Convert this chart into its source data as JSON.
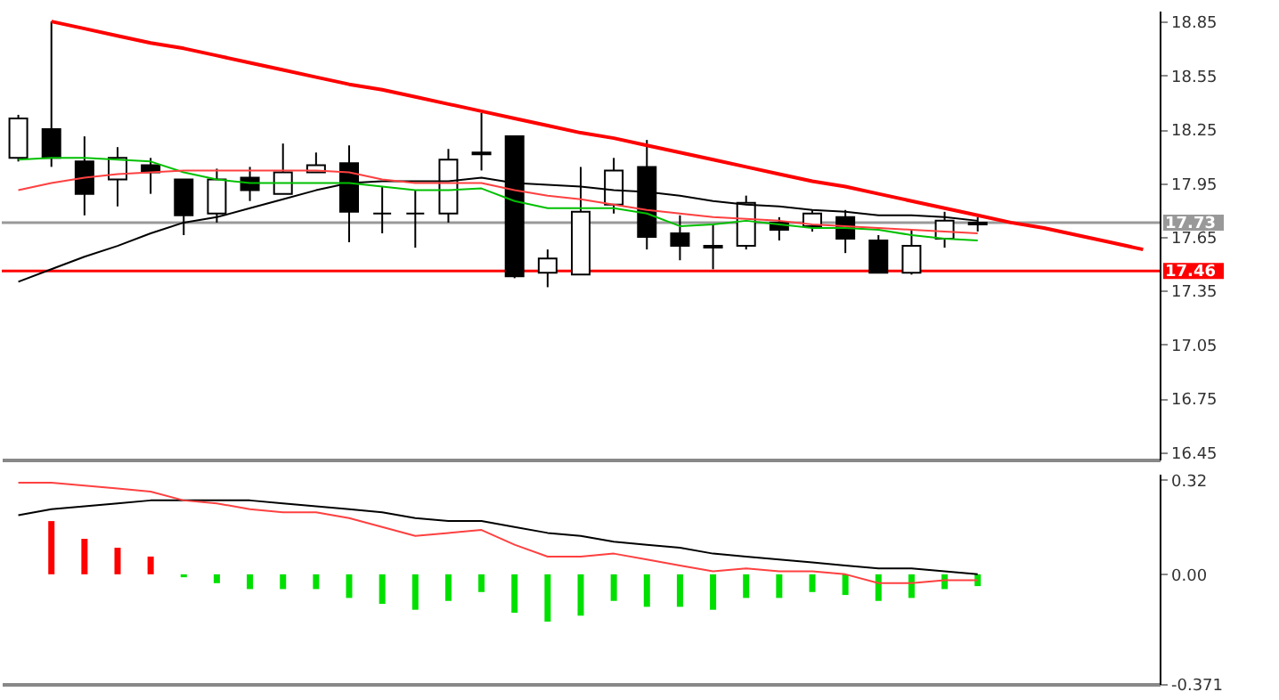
{
  "chart_data": [
    {
      "type": "candlestick",
      "categories": [
        null,
        null,
        null,
        null,
        null,
        null,
        null,
        null,
        null,
        null,
        null,
        null,
        null,
        null,
        null,
        null,
        null,
        null,
        null,
        null,
        null,
        null,
        null,
        null,
        null,
        null,
        null,
        null,
        null,
        null,
        null,
        null,
        null,
        null,
        null
      ],
      "ohlc": [
        [
          18.09,
          18.33,
          18.07,
          18.31
        ],
        [
          18.25,
          18.85,
          18.04,
          18.09
        ],
        [
          18.07,
          18.21,
          17.77,
          17.89
        ],
        [
          17.97,
          18.15,
          17.82,
          18.09
        ],
        [
          18.05,
          18.09,
          17.89,
          18.01
        ],
        [
          17.97,
          17.97,
          17.66,
          17.77
        ],
        [
          17.78,
          18.03,
          17.73,
          17.97
        ],
        [
          17.98,
          18.04,
          17.85,
          17.91
        ],
        [
          17.89,
          18.17,
          17.89,
          18.01
        ],
        [
          18.01,
          18.12,
          18.01,
          18.05
        ],
        [
          18.06,
          18.16,
          17.62,
          17.79
        ],
        [
          17.78,
          17.93,
          17.67,
          17.78
        ],
        [
          17.78,
          17.91,
          17.59,
          17.78
        ],
        [
          17.78,
          18.14,
          17.73,
          18.08
        ],
        [
          18.12,
          18.34,
          18.02,
          18.11
        ],
        [
          18.21,
          18.21,
          17.42,
          17.43
        ],
        [
          17.45,
          17.58,
          17.37,
          17.53
        ],
        [
          17.44,
          18.04,
          17.44,
          17.79
        ],
        [
          17.83,
          18.09,
          17.78,
          18.02
        ],
        [
          18.04,
          18.19,
          17.58,
          17.65
        ],
        [
          17.67,
          17.77,
          17.52,
          17.6
        ],
        [
          17.59,
          17.72,
          17.47,
          17.6
        ],
        [
          17.6,
          17.88,
          17.58,
          17.84
        ],
        [
          17.73,
          17.76,
          17.63,
          17.69
        ],
        [
          17.71,
          17.8,
          17.68,
          17.78
        ],
        [
          17.76,
          17.8,
          17.56,
          17.64
        ],
        [
          17.63,
          17.66,
          17.45,
          17.45
        ],
        [
          17.45,
          17.69,
          17.44,
          17.6
        ],
        [
          17.64,
          17.79,
          17.59,
          17.74
        ],
        [
          17.72,
          17.76,
          17.68,
          17.73
        ],
        null,
        null,
        null,
        null,
        null
      ],
      "series": [
        {
          "type": "line",
          "color": "#000000",
          "values": [
            17.4,
            17.47,
            17.54,
            17.6,
            17.67,
            17.73,
            17.76,
            17.81,
            17.86,
            17.91,
            17.95,
            17.96,
            17.96,
            17.96,
            17.98,
            17.95,
            17.94,
            17.93,
            17.91,
            17.9,
            17.88,
            17.85,
            17.83,
            17.82,
            17.8,
            17.79,
            17.77,
            17.77,
            17.76,
            17.74,
            null,
            null,
            null,
            null,
            null
          ]
        },
        {
          "type": "line",
          "color": "#00c000",
          "values": [
            18.08,
            18.09,
            18.09,
            18.08,
            18.07,
            18.01,
            17.97,
            17.95,
            17.95,
            17.95,
            17.95,
            17.93,
            17.91,
            17.91,
            17.92,
            17.85,
            17.81,
            17.81,
            17.81,
            17.78,
            17.71,
            17.72,
            17.74,
            17.72,
            17.7,
            17.7,
            17.69,
            17.66,
            17.64,
            17.63,
            null,
            null,
            null,
            null,
            null
          ]
        },
        {
          "type": "line",
          "color": "#ff4040",
          "values": [
            17.91,
            17.95,
            17.98,
            18.0,
            18.01,
            18.02,
            18.02,
            18.02,
            18.02,
            18.02,
            18.01,
            17.97,
            17.95,
            17.95,
            17.95,
            17.91,
            17.88,
            17.86,
            17.83,
            17.8,
            17.78,
            17.76,
            17.75,
            17.74,
            17.72,
            17.71,
            17.7,
            17.69,
            17.68,
            17.67,
            null,
            null,
            null,
            null,
            null
          ]
        },
        {
          "type": "line",
          "color": "#ff0000",
          "values": [
            null,
            18.85,
            18.81,
            18.77,
            18.73,
            18.7,
            18.66,
            18.62,
            18.58,
            18.54,
            18.5,
            18.47,
            18.43,
            18.39,
            18.35,
            18.31,
            18.27,
            18.23,
            18.2,
            18.16,
            18.12,
            18.08,
            18.04,
            18.0,
            17.96,
            17.93,
            17.89,
            17.85,
            17.81,
            17.77,
            17.73,
            17.7,
            17.66,
            17.62,
            17.58
          ]
        }
      ],
      "ref_lines": [
        {
          "axis": "y",
          "value": 17.73,
          "label": "17.73",
          "color": "#999999"
        },
        {
          "axis": "y",
          "value": 17.46,
          "label": "17.46",
          "color": "#ff0000"
        }
      ],
      "ylim": [
        16.41,
        18.91
      ],
      "yticks": [
        16.45,
        16.75,
        17.05,
        17.35,
        17.65,
        17.95,
        18.25,
        18.55,
        18.85
      ],
      "tick_labels": "y",
      "grid": false
    },
    {
      "type": "bar",
      "categories": [
        null,
        null,
        null,
        null,
        null,
        null,
        null,
        null,
        null,
        null,
        null,
        null,
        null,
        null,
        null,
        null,
        null,
        null,
        null,
        null,
        null,
        null,
        null,
        null,
        null,
        null,
        null,
        null,
        null,
        null,
        null,
        null,
        null,
        null,
        null
      ],
      "series": [
        {
          "type": "bar",
          "values": [
            null,
            0.18,
            0.12,
            0.09,
            0.06,
            -0.01,
            -0.03,
            -0.05,
            -0.05,
            -0.05,
            -0.08,
            -0.1,
            -0.12,
            -0.09,
            -0.06,
            -0.13,
            -0.16,
            -0.14,
            -0.09,
            -0.11,
            -0.11,
            -0.12,
            -0.08,
            -0.08,
            -0.06,
            -0.07,
            -0.09,
            -0.08,
            -0.05,
            -0.04,
            null,
            null,
            null,
            null,
            null
          ],
          "colors": [
            null,
            "#ff0000",
            "#ff0000",
            "#ff0000",
            "#ff0000",
            "#00e000",
            "#00e000",
            "#00e000",
            "#00e000",
            "#00e000",
            "#00e000",
            "#00e000",
            "#00e000",
            "#00e000",
            "#00e000",
            "#00e000",
            "#00e000",
            "#00e000",
            "#00e000",
            "#00e000",
            "#00e000",
            "#00e000",
            "#00e000",
            "#00e000",
            "#00e000",
            "#00e000",
            "#00e000",
            "#00e000",
            "#00e000",
            "#00e000",
            null,
            null,
            null,
            null,
            null
          ]
        },
        {
          "type": "line",
          "color": "#000000",
          "values": [
            0.2,
            0.22,
            0.23,
            0.24,
            0.25,
            0.25,
            0.25,
            0.25,
            0.24,
            0.23,
            0.22,
            0.21,
            0.19,
            0.18,
            0.18,
            0.16,
            0.14,
            0.13,
            0.11,
            0.1,
            0.09,
            0.07,
            0.06,
            0.05,
            0.04,
            0.03,
            0.02,
            0.02,
            0.01,
            0.0,
            null,
            null,
            null,
            null,
            null
          ]
        },
        {
          "type": "line",
          "color": "#ff4040",
          "values": [
            0.31,
            0.31,
            0.3,
            0.29,
            0.28,
            0.25,
            0.24,
            0.22,
            0.21,
            0.21,
            0.19,
            0.16,
            0.13,
            0.14,
            0.15,
            0.1,
            0.06,
            0.06,
            0.07,
            0.05,
            0.03,
            0.01,
            0.02,
            0.01,
            0.01,
            0.0,
            -0.03,
            -0.03,
            -0.02,
            -0.02,
            null,
            null,
            null,
            null,
            null
          ]
        }
      ],
      "ylim": [
        -0.371,
        0.34
      ],
      "yticks": [
        0.32,
        {
          "value": 0,
          "label": "0.00"
        },
        -0.371
      ],
      "tick_labels": "y",
      "grid": false
    }
  ]
}
